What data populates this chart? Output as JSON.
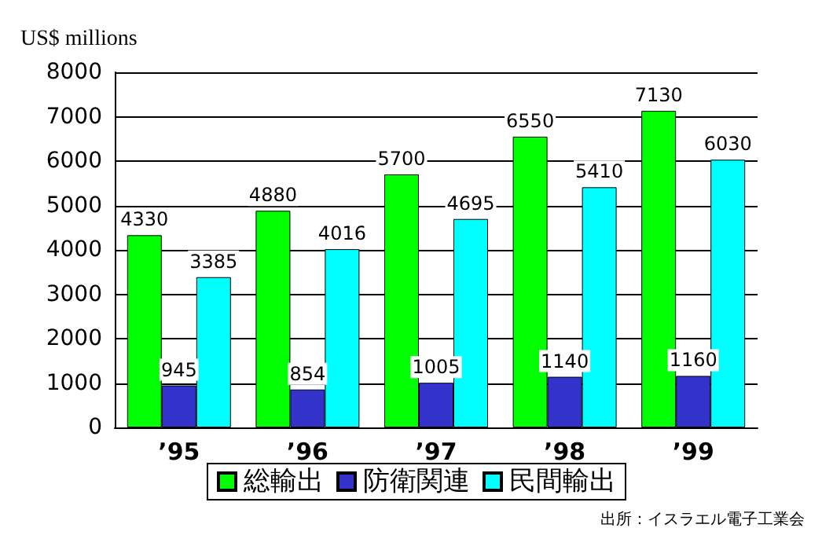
{
  "chart_data": {
    "type": "bar",
    "ylabel": "US$ millions",
    "categories": [
      "’95",
      "’96",
      "’97",
      "’98",
      "’99"
    ],
    "series": [
      {
        "name": "総輸出",
        "color": "#00ff00",
        "values": [
          4330,
          4880,
          5700,
          6550,
          7130
        ]
      },
      {
        "name": "防衛関連",
        "color": "#3333cc",
        "values": [
          945,
          854,
          1005,
          1140,
          1160
        ]
      },
      {
        "name": "民間輸出",
        "color": "#00ffff",
        "values": [
          3385,
          4016,
          4695,
          5410,
          6030
        ]
      }
    ],
    "ylim": [
      0,
      8000
    ],
    "yticks": [
      0,
      1000,
      2000,
      3000,
      4000,
      5000,
      6000,
      7000,
      8000
    ],
    "grid": "y",
    "legend": "bottom",
    "data_labels": true,
    "annotations": [
      "出所：イスラエル電子工業会"
    ]
  }
}
